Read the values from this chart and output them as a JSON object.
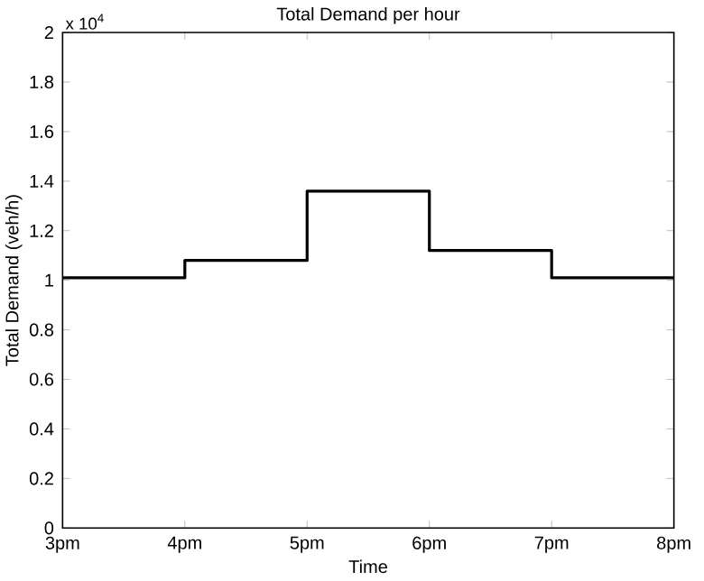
{
  "chart_data": {
    "type": "step",
    "title": "Total Demand per hour",
    "xlabel": "Time",
    "ylabel": "Total Demand (veh/h)",
    "annotations": [
      "x 10$^{4}$"
    ],
    "categories": [
      "3pm",
      "4pm",
      "5pm",
      "6pm",
      "7pm",
      "8pm"
    ],
    "values": [
      1.01,
      1.08,
      1.36,
      1.12,
      1.01,
      1.01
    ],
    "color": "#000000",
    "ylim": [
      0,
      2
    ],
    "yticks": [
      0,
      0.2,
      0.4,
      0.6,
      0.8,
      1,
      1.2,
      1.4,
      1.6,
      1.8,
      2
    ]
  }
}
